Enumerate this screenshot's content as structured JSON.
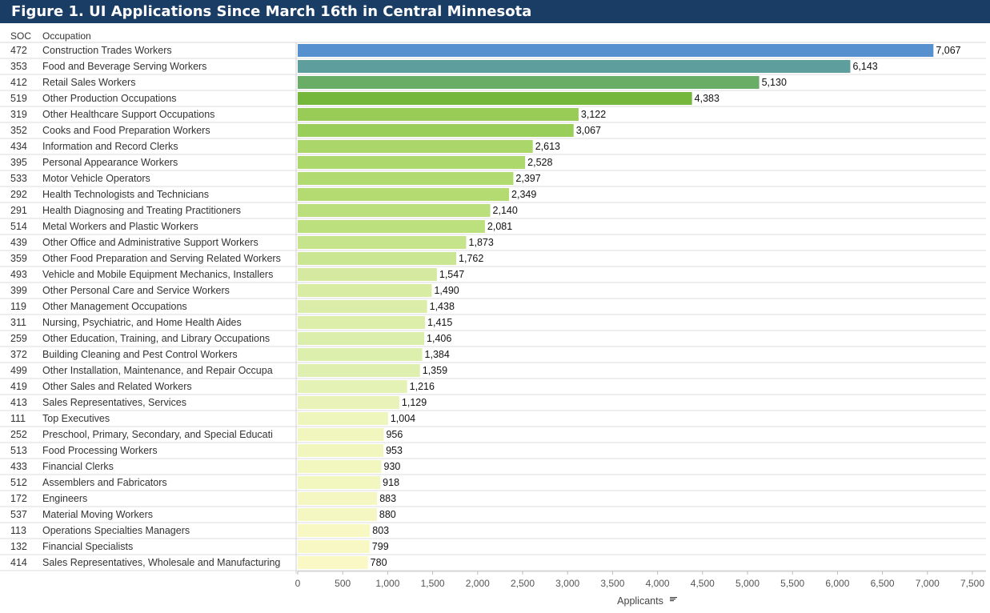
{
  "title": "Figure 1. UI Applications Since March 16th in Central Minnesota",
  "chart_data": {
    "type": "bar",
    "orientation": "horizontal",
    "column_headers": {
      "soc": "SOC",
      "occupation": "Occupation"
    },
    "xlabel": "Applicants",
    "xlim": [
      0,
      7500
    ],
    "xticks": [
      0,
      500,
      1000,
      1500,
      2000,
      2500,
      3000,
      3500,
      4000,
      4500,
      5000,
      5500,
      6000,
      6500,
      7000,
      7500
    ],
    "xtick_labels": [
      "0",
      "500",
      "1,000",
      "1,500",
      "2,000",
      "2,500",
      "3,000",
      "3,500",
      "4,000",
      "4,500",
      "5,000",
      "5,500",
      "6,000",
      "6,500",
      "7,000",
      "7,500"
    ],
    "grid": false,
    "sort_icon": "sort-descending-icon",
    "color_scale": {
      "low": "#fbf7c5",
      "mid": "#7fc241",
      "high": "#4e8fd0"
    },
    "rows": [
      {
        "soc": "472",
        "occupation": "Construction Trades Workers",
        "value": 7067,
        "label": "7,067",
        "color": "#5790cf"
      },
      {
        "soc": "353",
        "occupation": "Food and Beverage Serving Workers",
        "value": 6143,
        "label": "6,143",
        "color": "#5e9e9c"
      },
      {
        "soc": "412",
        "occupation": "Retail Sales Workers",
        "value": 5130,
        "label": "5,130",
        "color": "#6aad66"
      },
      {
        "soc": "519",
        "occupation": "Other Production Occupations",
        "value": 4383,
        "label": "4,383",
        "color": "#74b73a"
      },
      {
        "soc": "319",
        "occupation": "Other Healthcare Support Occupations",
        "value": 3122,
        "label": "3,122",
        "color": "#98cc57"
      },
      {
        "soc": "352",
        "occupation": "Cooks and Food Preparation Workers",
        "value": 3067,
        "label": "3,067",
        "color": "#9ace5a"
      },
      {
        "soc": "434",
        "occupation": "Information and Record Clerks",
        "value": 2613,
        "label": "2,613",
        "color": "#aad66a"
      },
      {
        "soc": "395",
        "occupation": "Personal Appearance Workers",
        "value": 2528,
        "label": "2,528",
        "color": "#add86c"
      },
      {
        "soc": "533",
        "occupation": "Motor Vehicle Operators",
        "value": 2397,
        "label": "2,397",
        "color": "#b1da70"
      },
      {
        "soc": "292",
        "occupation": "Health Technologists and Technicians",
        "value": 2349,
        "label": "2,349",
        "color": "#b3db72"
      },
      {
        "soc": "291",
        "occupation": "Health Diagnosing and Treating Practitioners",
        "value": 2140,
        "label": "2,140",
        "color": "#bbdf7c"
      },
      {
        "soc": "514",
        "occupation": "Metal Workers and Plastic Workers",
        "value": 2081,
        "label": "2,081",
        "color": "#bde07f"
      },
      {
        "soc": "439",
        "occupation": "Other Office and Administrative Support Workers",
        "value": 1873,
        "label": "1,873",
        "color": "#c6e48b"
      },
      {
        "soc": "359",
        "occupation": "Other Food Preparation and Serving Related Workers",
        "value": 1762,
        "label": "1,762",
        "color": "#cbe693"
      },
      {
        "soc": "493",
        "occupation": "Vehicle and Mobile Equipment Mechanics, Installers",
        "value": 1547,
        "label": "1,547",
        "color": "#d5eaa0"
      },
      {
        "soc": "399",
        "occupation": "Other Personal Care and Service Workers",
        "value": 1490,
        "label": "1,490",
        "color": "#d8eca4"
      },
      {
        "soc": "119",
        "occupation": "Other Management Occupations",
        "value": 1438,
        "label": "1,438",
        "color": "#dbeda8"
      },
      {
        "soc": "311",
        "occupation": "Nursing, Psychiatric, and Home Health Aides",
        "value": 1415,
        "label": "1,415",
        "color": "#dceeaa"
      },
      {
        "soc": "259",
        "occupation": "Other Education, Training, and Library Occupations",
        "value": 1406,
        "label": "1,406",
        "color": "#dceeab"
      },
      {
        "soc": "372",
        "occupation": "Building Cleaning and Pest Control Workers",
        "value": 1384,
        "label": "1,384",
        "color": "#ddefad"
      },
      {
        "soc": "499",
        "occupation": "Other Installation, Maintenance, and Repair Occupa",
        "value": 1359,
        "label": "1,359",
        "color": "#dfefaf"
      },
      {
        "soc": "419",
        "occupation": "Other Sales and Related Workers",
        "value": 1216,
        "label": "1,216",
        "color": "#e5f2b5"
      },
      {
        "soc": "413",
        "occupation": "Sales Representatives, Services",
        "value": 1129,
        "label": "1,129",
        "color": "#e9f3b9"
      },
      {
        "soc": "111",
        "occupation": "Top Executives",
        "value": 1004,
        "label": "1,004",
        "color": "#eef5bd"
      },
      {
        "soc": "252",
        "occupation": "Preschool, Primary, Secondary, and Special Educati",
        "value": 956,
        "label": "956",
        "color": "#f0f6be"
      },
      {
        "soc": "513",
        "occupation": "Food Processing Workers",
        "value": 953,
        "label": "953",
        "color": "#f0f6be"
      },
      {
        "soc": "433",
        "occupation": "Financial Clerks",
        "value": 930,
        "label": "930",
        "color": "#f2f7c0"
      },
      {
        "soc": "512",
        "occupation": "Assemblers and Fabricators",
        "value": 918,
        "label": "918",
        "color": "#f2f7c0"
      },
      {
        "soc": "172",
        "occupation": "Engineers",
        "value": 883,
        "label": "883",
        "color": "#f4f7c1"
      },
      {
        "soc": "537",
        "occupation": "Material Moving Workers",
        "value": 880,
        "label": "880",
        "color": "#f4f7c1"
      },
      {
        "soc": "113",
        "occupation": "Operations Specialties Managers",
        "value": 803,
        "label": "803",
        "color": "#f8f8c4"
      },
      {
        "soc": "132",
        "occupation": "Financial Specialists",
        "value": 799,
        "label": "799",
        "color": "#f8f8c4"
      },
      {
        "soc": "414",
        "occupation": "Sales Representatives, Wholesale and Manufacturing",
        "value": 780,
        "label": "780",
        "color": "#faf8c5"
      }
    ]
  }
}
